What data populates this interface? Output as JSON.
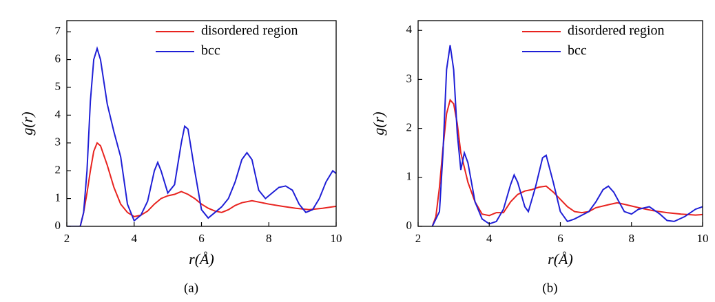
{
  "chart_data": [
    {
      "type": "line",
      "xlabel": "r(Å)",
      "ylabel": "g(r)",
      "caption": "(a)",
      "xlim": [
        2,
        10
      ],
      "ylim": [
        0,
        7.4
      ],
      "xticks": [
        2,
        4,
        6,
        8,
        10
      ],
      "yticks": [
        0,
        1,
        2,
        3,
        4,
        5,
        6,
        7
      ],
      "series": [
        {
          "name": "disordered region",
          "color": "#e8231f",
          "x": [
            2.4,
            2.5,
            2.6,
            2.7,
            2.8,
            2.9,
            3.0,
            3.2,
            3.4,
            3.6,
            3.8,
            4.0,
            4.2,
            4.4,
            4.6,
            4.8,
            5.0,
            5.2,
            5.4,
            5.6,
            5.8,
            6.0,
            6.2,
            6.4,
            6.6,
            6.8,
            7.0,
            7.2,
            7.5,
            7.8,
            8.0,
            8.4,
            8.8,
            9.2,
            9.6,
            10
          ],
          "values": [
            0,
            0.5,
            1.2,
            2.0,
            2.7,
            3.0,
            2.9,
            2.2,
            1.4,
            0.8,
            0.5,
            0.35,
            0.4,
            0.55,
            0.8,
            1.0,
            1.1,
            1.15,
            1.25,
            1.15,
            1.0,
            0.8,
            0.65,
            0.55,
            0.5,
            0.6,
            0.75,
            0.85,
            0.92,
            0.85,
            0.8,
            0.72,
            0.65,
            0.6,
            0.65,
            0.72
          ]
        },
        {
          "name": "bcc",
          "color": "#1f1fd6",
          "x": [
            2.0,
            2.4,
            2.5,
            2.6,
            2.7,
            2.8,
            2.9,
            3.0,
            3.2,
            3.4,
            3.6,
            3.8,
            4.0,
            4.2,
            4.4,
            4.6,
            4.7,
            4.8,
            5.0,
            5.2,
            5.4,
            5.5,
            5.6,
            5.8,
            6.0,
            6.2,
            6.4,
            6.6,
            6.8,
            7.0,
            7.2,
            7.35,
            7.5,
            7.7,
            7.9,
            8.1,
            8.3,
            8.5,
            8.7,
            8.9,
            9.1,
            9.3,
            9.5,
            9.7,
            9.9,
            10
          ],
          "values": [
            0,
            0,
            0.5,
            2.0,
            4.5,
            6.0,
            6.4,
            6.0,
            4.4,
            3.4,
            2.5,
            0.8,
            0.2,
            0.4,
            0.9,
            2.0,
            2.3,
            2.0,
            1.2,
            1.5,
            3.0,
            3.6,
            3.5,
            2.0,
            0.6,
            0.3,
            0.5,
            0.7,
            1.0,
            1.6,
            2.4,
            2.65,
            2.4,
            1.3,
            1.0,
            1.2,
            1.4,
            1.45,
            1.3,
            0.8,
            0.5,
            0.6,
            1.0,
            1.6,
            2.0,
            1.9
          ]
        }
      ]
    },
    {
      "type": "line",
      "xlabel": "r(Å)",
      "ylabel": "g(r)",
      "caption": "(b)",
      "xlim": [
        2,
        10
      ],
      "ylim": [
        0,
        4.2
      ],
      "xticks": [
        2,
        4,
        6,
        8,
        10
      ],
      "yticks": [
        0,
        1,
        2,
        3,
        4
      ],
      "series": [
        {
          "name": "disordered region",
          "color": "#e8231f",
          "x": [
            2.4,
            2.5,
            2.6,
            2.7,
            2.8,
            2.9,
            3.0,
            3.1,
            3.2,
            3.4,
            3.6,
            3.8,
            4.0,
            4.2,
            4.4,
            4.6,
            4.8,
            5.0,
            5.2,
            5.4,
            5.6,
            5.8,
            6.0,
            6.2,
            6.4,
            6.6,
            6.8,
            7.0,
            7.4,
            7.6,
            7.8,
            8.2,
            8.6,
            9.0,
            9.4,
            9.8,
            10
          ],
          "values": [
            0,
            0.2,
            0.8,
            1.6,
            2.3,
            2.58,
            2.5,
            2.1,
            1.5,
            0.9,
            0.5,
            0.25,
            0.22,
            0.28,
            0.28,
            0.5,
            0.65,
            0.72,
            0.75,
            0.8,
            0.82,
            0.7,
            0.55,
            0.4,
            0.3,
            0.28,
            0.3,
            0.38,
            0.45,
            0.48,
            0.45,
            0.38,
            0.32,
            0.28,
            0.25,
            0.23,
            0.24
          ]
        },
        {
          "name": "bcc",
          "color": "#1f1fd6",
          "x": [
            2.4,
            2.6,
            2.7,
            2.8,
            2.9,
            3.0,
            3.1,
            3.2,
            3.3,
            3.4,
            3.6,
            3.8,
            4.0,
            4.2,
            4.4,
            4.6,
            4.7,
            4.8,
            5.0,
            5.1,
            5.3,
            5.5,
            5.6,
            5.8,
            6.0,
            6.2,
            6.4,
            6.8,
            7.0,
            7.2,
            7.35,
            7.5,
            7.8,
            8.0,
            8.2,
            8.5,
            8.8,
            9.0,
            9.2,
            9.5,
            9.8,
            10
          ],
          "values": [
            0,
            0.3,
            1.5,
            3.2,
            3.7,
            3.2,
            1.9,
            1.15,
            1.5,
            1.3,
            0.5,
            0.15,
            0.05,
            0.1,
            0.35,
            0.85,
            1.05,
            0.9,
            0.4,
            0.3,
            0.8,
            1.4,
            1.45,
            0.9,
            0.3,
            0.1,
            0.15,
            0.3,
            0.5,
            0.75,
            0.82,
            0.7,
            0.3,
            0.25,
            0.35,
            0.4,
            0.25,
            0.12,
            0.1,
            0.2,
            0.35,
            0.4
          ]
        }
      ]
    }
  ]
}
